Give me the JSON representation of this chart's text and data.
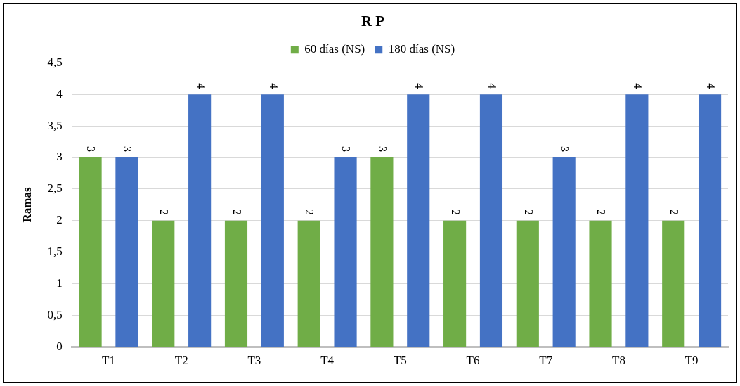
{
  "chart_data": {
    "type": "bar",
    "title": "R P",
    "ylabel": "Ramas",
    "categories": [
      "T1",
      "T2",
      "T3",
      "T4",
      "T5",
      "T6",
      "T7",
      "T8",
      "T9"
    ],
    "series": [
      {
        "name": "60 días (NS)",
        "color": "#70ad47",
        "values": [
          3,
          2,
          2,
          2,
          3,
          2,
          2,
          2,
          2
        ]
      },
      {
        "name": "180 días (NS)",
        "color": "#4472c4",
        "values": [
          3,
          4,
          4,
          3,
          4,
          4,
          3,
          4,
          4
        ]
      }
    ],
    "ylim": [
      0,
      4.5
    ],
    "yticks": [
      0,
      {
        "value": 0.5,
        "label": "0,5"
      },
      1,
      {
        "value": 1.5,
        "label": "1,5"
      },
      2,
      {
        "value": 2.5,
        "label": "2,5"
      },
      3,
      {
        "value": 3.5,
        "label": "3,5"
      },
      4,
      {
        "value": 4.5,
        "label": "4,5"
      }
    ],
    "grid": "y",
    "legend": "top",
    "data_labels": true
  }
}
